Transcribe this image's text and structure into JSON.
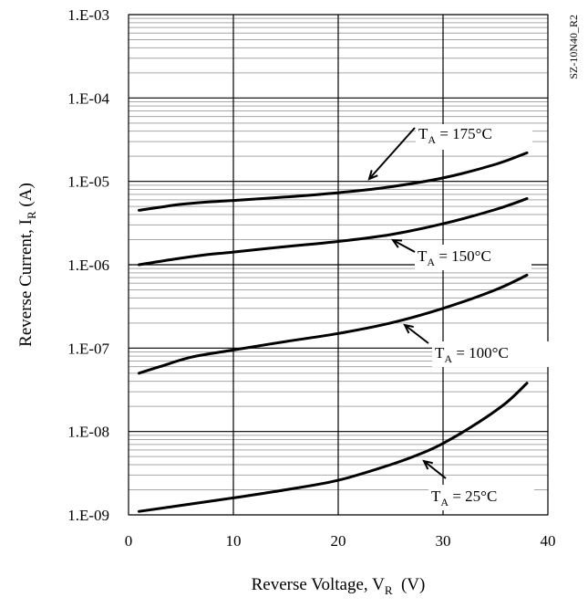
{
  "chart_data": {
    "type": "line",
    "code_label": "SZ-10N40_R2",
    "x_axis": {
      "label_main": "Reverse Voltage, V",
      "label_sub": "R",
      "label_unit": "(V)",
      "range": [
        0,
        40
      ],
      "ticks": [
        0,
        10,
        20,
        30,
        40
      ],
      "tick_labels": [
        "0",
        "10",
        "20",
        "30",
        "40"
      ]
    },
    "y_axis": {
      "label_main": "Reverse Current, I",
      "label_sub": "R",
      "label_unit": "(A)",
      "scale": "log",
      "range": [
        1e-09,
        0.001
      ],
      "ticks": [
        1e-09,
        1e-08,
        1e-07,
        1e-06,
        1e-05,
        0.0001,
        0.001
      ],
      "tick_labels": [
        "1.E-09",
        "1.E-08",
        "1.E-07",
        "1.E-06",
        "1.E-05",
        "1.E-04",
        "1.E-03"
      ]
    },
    "grid": "on (major lines at each decade and every 10 V, minor lines for log sub-divisions)",
    "series": [
      {
        "label_main": "T",
        "label_sub": "A",
        "label_value": " = 175°C",
        "x": [
          1,
          3,
          5,
          7,
          10,
          15,
          20,
          25,
          30,
          35,
          38
        ],
        "y": [
          4.5e-06,
          4.9e-06,
          5.3e-06,
          5.6e-06,
          5.9e-06,
          6.5e-06,
          7.3e-06,
          8.6e-06,
          1.1e-05,
          1.6e-05,
          2.2e-05
        ]
      },
      {
        "label_main": "T",
        "label_sub": "A",
        "label_value": " = 150°C",
        "x": [
          1,
          4,
          7,
          10,
          15,
          20,
          25,
          30,
          35,
          38
        ],
        "y": [
          1e-06,
          1.15e-06,
          1.3e-06,
          1.42e-06,
          1.65e-06,
          1.9e-06,
          2.3e-06,
          3.1e-06,
          4.6e-06,
          6.2e-06
        ]
      },
      {
        "label_main": "T",
        "label_sub": "A",
        "label_value": " = 100°C",
        "x": [
          1,
          3,
          6,
          10,
          15,
          20,
          25,
          30,
          35,
          38
        ],
        "y": [
          5e-08,
          6e-08,
          7.8e-08,
          9.5e-08,
          1.2e-07,
          1.5e-07,
          2e-07,
          3e-07,
          5e-07,
          7.5e-07
        ]
      },
      {
        "label_main": "T",
        "label_sub": "A",
        "label_value": " = 25°C",
        "x": [
          1,
          5,
          10,
          15,
          20,
          25,
          28,
          30,
          33,
          36,
          38
        ],
        "y": [
          1.1e-09,
          1.3e-09,
          1.6e-09,
          2e-09,
          2.6e-09,
          4e-09,
          5.5e-09,
          7.2e-09,
          1.2e-08,
          2.2e-08,
          3.8e-08
        ]
      }
    ]
  }
}
